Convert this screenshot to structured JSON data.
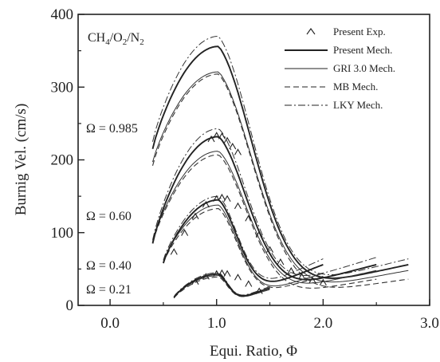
{
  "chart_data": {
    "type": "line",
    "title": "",
    "xlabel": "Equi. Ratio, Φ",
    "ylabel": "Burnig Vel. (cm/s)",
    "xlim": [
      -0.3,
      3.0
    ],
    "ylim": [
      0,
      400
    ],
    "x_ticks": [
      0.0,
      1.0,
      2.0,
      3.0
    ],
    "x_tick_labels": [
      "0.0",
      "1.0",
      "2.0",
      "3.0"
    ],
    "y_ticks": [
      0,
      100,
      200,
      300,
      400
    ],
    "y_tick_labels": [
      "0",
      "100",
      "200",
      "300",
      "400"
    ],
    "grid": false,
    "legend_position": "top-right",
    "mixture_label": "CH4/O2/N2",
    "legend": [
      {
        "label": "Present Exp.",
        "style": "marker"
      },
      {
        "label": "Present Mech.",
        "style": "solid"
      },
      {
        "label": "GRI 3.0 Mech.",
        "style": "thin"
      },
      {
        "label": "MB Mech.",
        "style": "dashed"
      },
      {
        "label": "LKY Mech.",
        "style": "dashdot"
      }
    ],
    "groups": [
      {
        "label": "Ω = 0.985",
        "x_min": 0.4,
        "x_max": 2.8,
        "peak": {
          "present": 356,
          "gri": 321,
          "mb": 318,
          "lky": 370
        },
        "end": {
          "present": 28,
          "gri": 24,
          "mb": 18,
          "lky": 32
        },
        "start": {
          "present": 215,
          "gri": 197,
          "mb": 192,
          "lky": 225
        },
        "experiment": []
      },
      {
        "label": "Ω = 0.60",
        "x_min": 0.4,
        "x_max": 2.5,
        "peak": {
          "present": 232,
          "gri": 212,
          "mb": 207,
          "lky": 243
        },
        "end": {
          "present": 28,
          "gri": 24,
          "mb": 18,
          "lky": 33
        },
        "start": {
          "present": 85,
          "gri": 88,
          "mb": 86,
          "lky": 90
        },
        "experiment": [
          {
            "x": 0.95,
            "y": 228
          },
          {
            "x": 1.0,
            "y": 233
          },
          {
            "x": 1.05,
            "y": 232
          },
          {
            "x": 1.1,
            "y": 226
          },
          {
            "x": 1.15,
            "y": 218
          },
          {
            "x": 1.2,
            "y": 210
          }
        ]
      },
      {
        "label": "Ω = 0.40",
        "x_min": 0.5,
        "x_max": 2.0,
        "peak": {
          "present": 145,
          "gri": 138,
          "mb": 133,
          "lky": 150
        },
        "end": {
          "present": 28,
          "gri": 22,
          "mb": 20,
          "lky": 32
        },
        "start": {
          "present": 58,
          "gri": 60,
          "mb": 58,
          "lky": 62
        },
        "experiment": [
          {
            "x": 0.6,
            "y": 73
          },
          {
            "x": 0.7,
            "y": 99
          },
          {
            "x": 0.8,
            "y": 122
          },
          {
            "x": 0.9,
            "y": 138
          },
          {
            "x": 1.0,
            "y": 146
          },
          {
            "x": 1.05,
            "y": 148
          },
          {
            "x": 1.1,
            "y": 146
          },
          {
            "x": 1.2,
            "y": 136
          },
          {
            "x": 1.3,
            "y": 119
          },
          {
            "x": 1.4,
            "y": 97
          },
          {
            "x": 1.5,
            "y": 76
          },
          {
            "x": 1.6,
            "y": 59
          },
          {
            "x": 1.7,
            "y": 47
          },
          {
            "x": 1.8,
            "y": 39
          },
          {
            "x": 1.9,
            "y": 34
          },
          {
            "x": 2.0,
            "y": 31
          }
        ]
      },
      {
        "label": "Ω = 0.21",
        "x_min": 0.6,
        "x_max": 1.5,
        "peak": {
          "present": 43,
          "gri": 41,
          "mb": 39,
          "lky": 45
        },
        "end": {
          "present": 12,
          "gri": 11,
          "mb": 11,
          "lky": 13
        },
        "start": {
          "present": 11,
          "gri": 11,
          "mb": 10,
          "lky": 12
        },
        "experiment": [
          {
            "x": 0.8,
            "y": 32
          },
          {
            "x": 0.9,
            "y": 39
          },
          {
            "x": 1.0,
            "y": 43
          },
          {
            "x": 1.05,
            "y": 44
          },
          {
            "x": 1.1,
            "y": 43
          },
          {
            "x": 1.2,
            "y": 38
          },
          {
            "x": 1.3,
            "y": 29
          },
          {
            "x": 1.4,
            "y": 19
          }
        ]
      }
    ]
  }
}
